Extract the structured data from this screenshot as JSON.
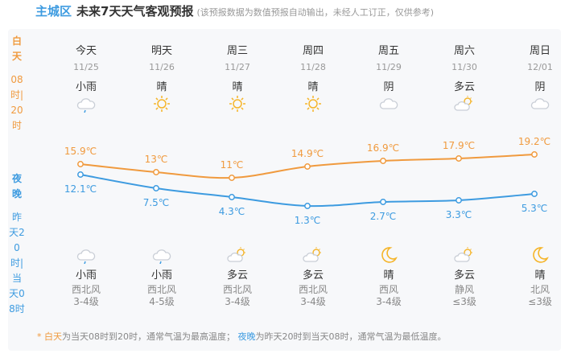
{
  "header": {
    "city": "主城区",
    "title": "未来7天天气客观预报",
    "note": "(该预报数据为数值预报自动输出，未经人工订正，仅供参考)"
  },
  "side": {
    "day_label": "白天",
    "day_range": "08时|20时",
    "night_label": "夜晚",
    "night_range": "昨天20时|当天08时"
  },
  "days": [
    {
      "name": "今天",
      "date": "11/25",
      "day_cond": "小雨",
      "day_icon": "light-rain",
      "high": "15.9℃",
      "low": "12.1℃",
      "night_cond": "小雨",
      "night_icon": "light-rain",
      "wind_dir": "西北风",
      "wind_lvl": "3-4级"
    },
    {
      "name": "明天",
      "date": "11/26",
      "day_cond": "晴",
      "day_icon": "sun",
      "high": "13℃",
      "low": "7.5℃",
      "night_cond": "小雨",
      "night_icon": "light-rain",
      "wind_dir": "西北风",
      "wind_lvl": "4-5级"
    },
    {
      "name": "周三",
      "date": "11/27",
      "day_cond": "晴",
      "day_icon": "sun",
      "high": "11℃",
      "low": "4.3℃",
      "night_cond": "多云",
      "night_icon": "partly-cloudy",
      "wind_dir": "西北风",
      "wind_lvl": "3-4级"
    },
    {
      "name": "周四",
      "date": "11/28",
      "day_cond": "晴",
      "day_icon": "sun",
      "high": "14.9℃",
      "low": "1.3℃",
      "night_cond": "多云",
      "night_icon": "partly-cloudy",
      "wind_dir": "西北风",
      "wind_lvl": "3-4级"
    },
    {
      "name": "周五",
      "date": "11/29",
      "day_cond": "阴",
      "day_icon": "overcast",
      "high": "16.9℃",
      "low": "2.7℃",
      "night_cond": "晴",
      "night_icon": "moon",
      "wind_dir": "西风",
      "wind_lvl": "3-4级"
    },
    {
      "name": "周六",
      "date": "11/30",
      "day_cond": "多云",
      "day_icon": "partly-cloudy",
      "high": "17.9℃",
      "low": "3.3℃",
      "night_cond": "多云",
      "night_icon": "partly-cloudy",
      "wind_dir": "静风",
      "wind_lvl": "≤3级"
    },
    {
      "name": "周日",
      "date": "12/01",
      "day_cond": "阴",
      "day_icon": "overcast",
      "high": "19.2℃",
      "low": "5.3℃",
      "night_cond": "晴",
      "night_icon": "moon",
      "wind_dir": "北风",
      "wind_lvl": "≤3级"
    }
  ],
  "chart_data": {
    "type": "line",
    "categories": [
      "11/25",
      "11/26",
      "11/27",
      "11/28",
      "11/29",
      "11/30",
      "12/01"
    ],
    "series": [
      {
        "values": [
          15.9,
          13,
          11,
          14.9,
          16.9,
          17.9,
          19.2
        ],
        "color": "#f09a3e"
      },
      {
        "values": [
          12.1,
          7.5,
          4.3,
          1.3,
          2.7,
          3.3,
          5.3
        ],
        "color": "#3d9be0"
      }
    ]
  },
  "footer": {
    "star": "*",
    "day_label": "白天",
    "day_text": "为当天08时到20时，通常气温为最高温度；",
    "night_label": "夜晚",
    "night_text": "为昨天20时到当天08时，通常气温为最低温度。"
  },
  "colors": {
    "day": "#f09a3e",
    "night": "#3d9be0",
    "sun": "#f5b52a",
    "cloud": "#c9ced6"
  }
}
